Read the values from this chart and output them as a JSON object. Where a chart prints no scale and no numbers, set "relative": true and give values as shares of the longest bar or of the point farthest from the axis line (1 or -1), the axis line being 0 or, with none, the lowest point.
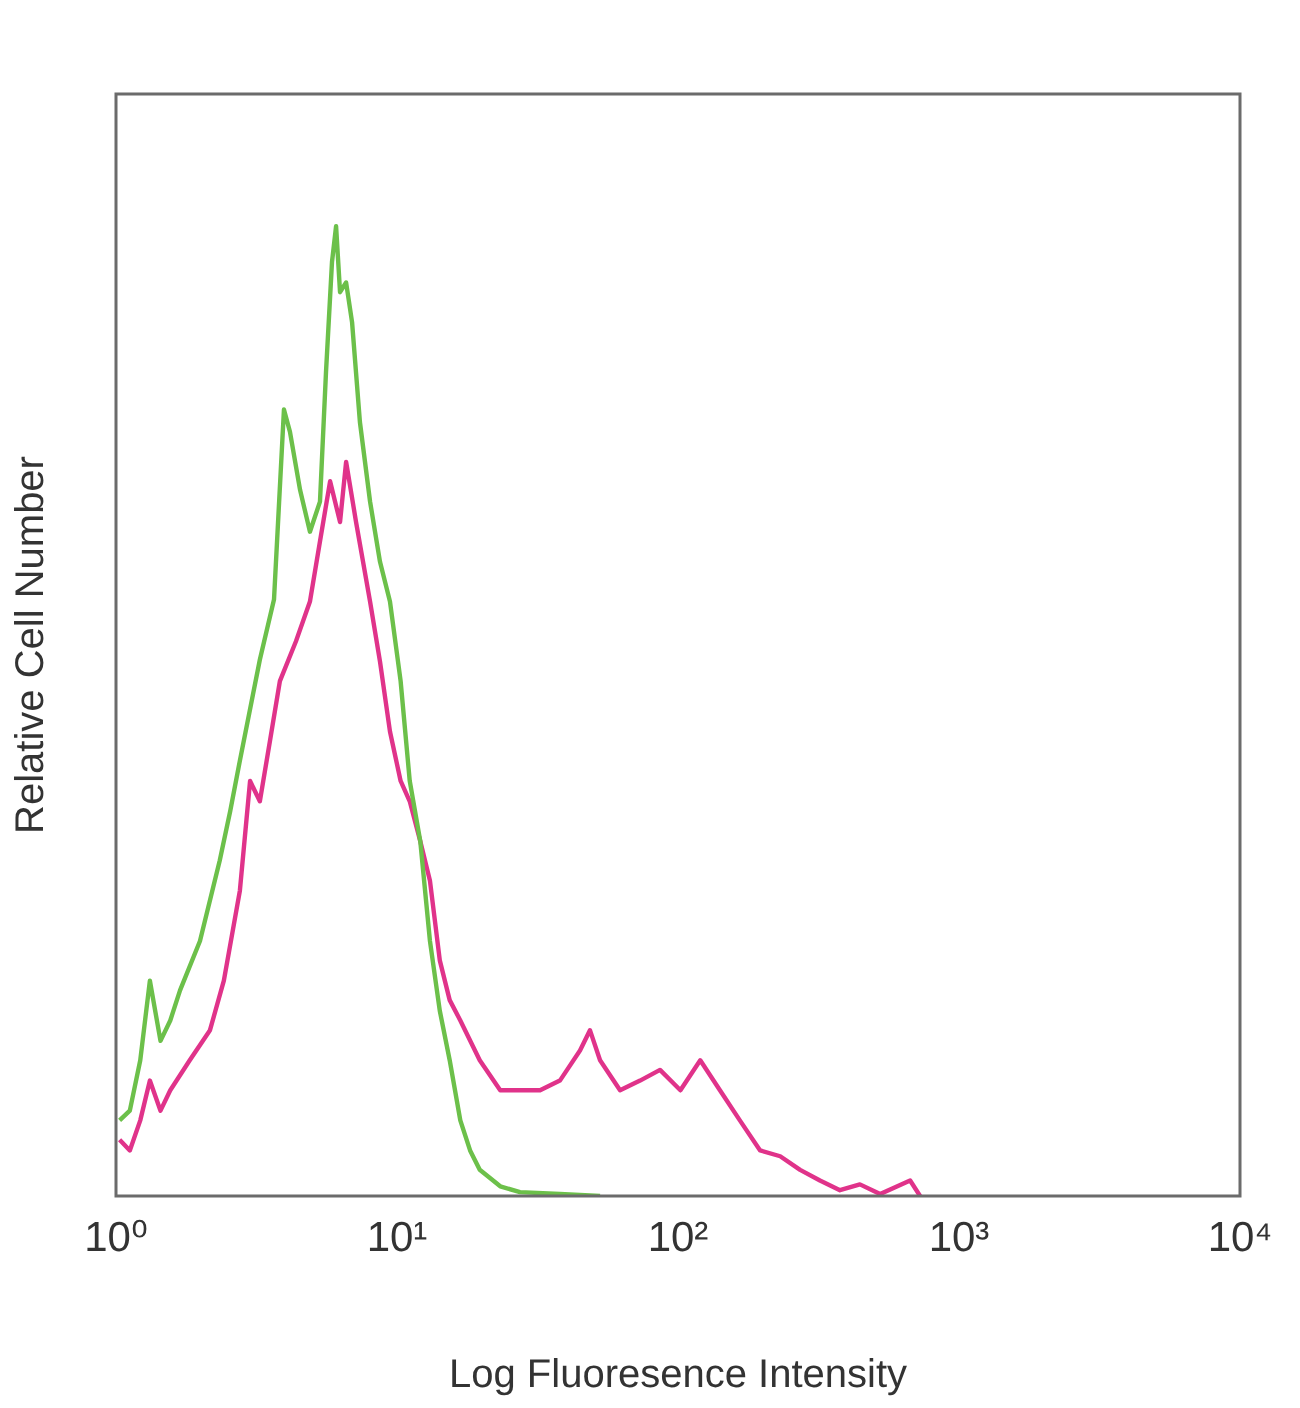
{
  "chart_data": {
    "type": "line",
    "xlabel": "Log Fluoresence Intensity",
    "ylabel": "Relative Cell Number",
    "relative": true,
    "log": "x",
    "grid": false,
    "legend": false,
    "marker": "none",
    "line_style": "solid",
    "xlim": [
      1,
      10000
    ],
    "xticks": [
      {
        "value": 1,
        "label": "10⁰"
      },
      {
        "value": 10,
        "label": "10¹"
      },
      {
        "value": 100,
        "label": "10²"
      },
      {
        "value": 1000,
        "label": "10³"
      },
      {
        "value": 10000,
        "label": "10⁴"
      }
    ],
    "series": [
      {
        "color": "#6cc04a",
        "x": [
          1.03,
          1.12,
          1.22,
          1.32,
          1.44,
          1.56,
          1.69,
          1.99,
          2.34,
          2.55,
          2.76,
          3.25,
          3.65,
          3.96,
          4.16,
          4.52,
          4.9,
          5.32,
          5.59,
          5.87,
          6.07,
          6.27,
          6.59,
          6.92,
          7.38,
          8.02,
          8.7,
          9.44,
          10.3,
          11.1,
          12.1,
          13.1,
          14.2,
          15.4,
          16.8,
          18.2,
          19.7,
          23.3,
          27.4,
          38,
          52.8
        ],
        "values": [
          0.078,
          0.088,
          0.14,
          0.222,
          0.16,
          0.181,
          0.212,
          0.263,
          0.346,
          0.397,
          0.449,
          0.553,
          0.615,
          0.811,
          0.788,
          0.728,
          0.685,
          0.716,
          0.85,
          0.963,
          1,
          0.932,
          0.942,
          0.901,
          0.798,
          0.716,
          0.654,
          0.613,
          0.531,
          0.428,
          0.366,
          0.263,
          0.191,
          0.14,
          0.078,
          0.047,
          0.027,
          0.01,
          0.004,
          0.002,
          0
        ]
      },
      {
        "color": "#e0338a",
        "x": [
          1.03,
          1.12,
          1.22,
          1.32,
          1.44,
          1.56,
          1.83,
          2.16,
          2.42,
          2.76,
          3,
          3.25,
          3.53,
          3.83,
          4.37,
          4.9,
          5.32,
          5.78,
          6.27,
          6.59,
          7.15,
          8.02,
          8.7,
          9.44,
          10.3,
          11.1,
          12.1,
          13.1,
          14.2,
          15.4,
          16.8,
          19.7,
          23.3,
          27.4,
          32.3,
          38,
          44.8,
          48.6,
          52.8,
          62.2,
          73.3,
          86.3,
          102,
          120,
          141,
          166,
          196,
          231,
          272,
          320,
          377,
          444,
          524,
          670,
          727
        ],
        "values": [
          0.058,
          0.047,
          0.078,
          0.119,
          0.088,
          0.109,
          0.14,
          0.171,
          0.222,
          0.315,
          0.428,
          0.407,
          0.469,
          0.531,
          0.572,
          0.613,
          0.675,
          0.737,
          0.695,
          0.757,
          0.695,
          0.613,
          0.551,
          0.479,
          0.428,
          0.407,
          0.366,
          0.325,
          0.243,
          0.202,
          0.181,
          0.14,
          0.109,
          0.109,
          0.109,
          0.119,
          0.15,
          0.171,
          0.14,
          0.109,
          0.119,
          0.13,
          0.109,
          0.14,
          0.109,
          0.078,
          0.047,
          0.041,
          0.027,
          0.016,
          0.006,
          0.012,
          0.002,
          0.016,
          0
        ]
      }
    ]
  }
}
